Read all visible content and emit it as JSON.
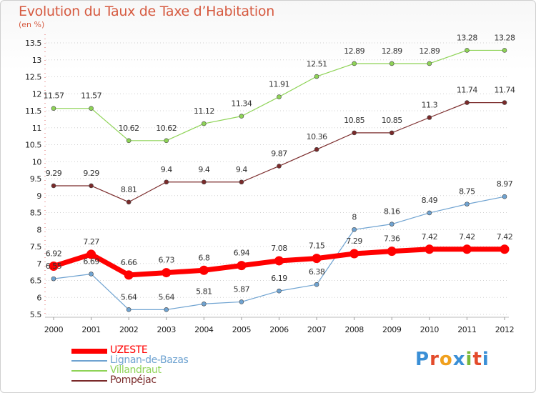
{
  "header": {
    "title": "Evolution du Taux de Taxe d’Habitation",
    "subtitle": "(en %)"
  },
  "chart_data": {
    "type": "line",
    "x": [
      "2000",
      "2001",
      "2002",
      "2003",
      "2004",
      "2005",
      "2006",
      "2007",
      "2008",
      "2009",
      "2010",
      "2011",
      "2012"
    ],
    "ylim": [
      5.5,
      13.5
    ],
    "yticks": [
      5.5,
      6,
      6.5,
      7,
      7.5,
      8,
      8.5,
      9,
      9.5,
      10,
      10.5,
      11,
      11.5,
      12,
      12.5,
      13,
      13.5
    ],
    "grid": "horizontal dotted",
    "legend_position": "bottom-left",
    "series": [
      {
        "name": "Lignan-de-Bazas",
        "color": "#6fa3d1",
        "values": [
          6.55,
          6.69,
          5.64,
          5.64,
          5.81,
          5.87,
          6.19,
          6.38,
          8,
          8.16,
          8.49,
          8.75,
          8.97
        ],
        "labels": [
          "6.55",
          "6.69",
          "5.64",
          "5.64",
          "5.81",
          "5.87",
          "6.19",
          "6.38",
          "8",
          "8.16",
          "8.49",
          "8.75",
          "8.97"
        ]
      },
      {
        "name": "Villandraut",
        "color": "#8ed356",
        "values": [
          11.57,
          11.57,
          10.62,
          10.62,
          11.12,
          11.34,
          11.91,
          12.51,
          12.89,
          12.89,
          12.89,
          13.28,
          13.28
        ],
        "labels": [
          "11.57",
          "11.57",
          "10.62",
          "10.62",
          "11.12",
          "11.34",
          "11.91",
          "12.51",
          "12.89",
          "12.89",
          "12.89",
          "13.28",
          "13.28"
        ]
      },
      {
        "name": "Pompéjac",
        "color": "#7a2a2a",
        "values": [
          9.29,
          9.29,
          8.81,
          9.4,
          9.4,
          9.4,
          9.87,
          10.36,
          10.85,
          10.85,
          11.3,
          11.74,
          11.74
        ],
        "labels": [
          "9.29",
          "9.29",
          "8.81",
          "9.4",
          "9.4",
          "9.4",
          "9.87",
          "10.36",
          "10.85",
          "10.85",
          "11.3",
          "11.74",
          "11.74"
        ]
      },
      {
        "name": "UZESTE",
        "color": "#ff0000",
        "values": [
          6.92,
          7.27,
          6.66,
          6.73,
          6.8,
          6.94,
          7.08,
          7.15,
          7.29,
          7.36,
          7.42,
          7.42,
          7.42
        ],
        "labels": [
          "6.92",
          "7.27",
          "6.66",
          "6.73",
          "6.8",
          "6.94",
          "7.08",
          "7.15",
          "7.29",
          "7.36",
          "7.42",
          "7.42",
          "7.42"
        ]
      }
    ]
  },
  "legend": {
    "items": [
      {
        "label": "UZESTE",
        "color": "#ff0000"
      },
      {
        "label": "Lignan-de-Bazas",
        "color": "#6fa3d1"
      },
      {
        "label": "Villandraut",
        "color": "#8ed356"
      },
      {
        "label": "Pompéjac",
        "color": "#7a2a2a"
      }
    ]
  },
  "brand": {
    "text": "Proxiti",
    "letter_colors": [
      "#3a8fd6",
      "#e34b2b",
      "#f0a01e",
      "#3a8fd6",
      "#79b83a",
      "#e34b2b",
      "#3a8fd6"
    ]
  }
}
